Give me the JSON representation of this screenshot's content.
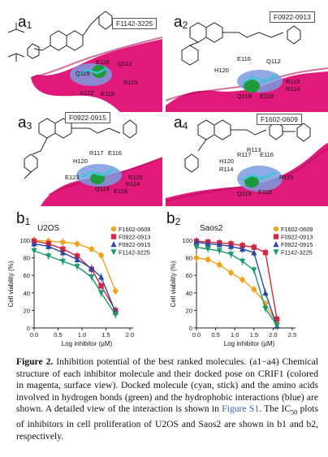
{
  "panels": {
    "a1": {
      "label_letter": "a",
      "label_num": "1",
      "compound": "F1142-3225",
      "residues": [
        "E116",
        "Q112",
        "Q119",
        "R115",
        "A122",
        "E118"
      ]
    },
    "a2": {
      "label_letter": "a",
      "label_num": "2",
      "compound": "F0922-0913",
      "residues": [
        "E116",
        "Q112",
        "H120",
        "R115",
        "R114",
        "Q119",
        "E118"
      ]
    },
    "a3": {
      "label_letter": "a",
      "label_num": "3",
      "compound": "F0922-0915",
      "residues": [
        "R117",
        "E116",
        "H120",
        "E123",
        "R115",
        "R114",
        "Q119",
        "E118"
      ]
    },
    "a4": {
      "label_letter": "a",
      "label_num": "4",
      "compound": "F1602-0609",
      "residues": [
        "R117",
        "E116",
        "H120",
        "R113",
        "R114",
        "R115",
        "Q119",
        "E118"
      ]
    }
  },
  "chart_data": [
    {
      "type": "scatter",
      "label_letter": "b",
      "label_num": "1",
      "title": "U2OS",
      "xlabel": "Log inhibitor (µM)",
      "ylabel": "Cell viability (%)",
      "xlim": [
        0.0,
        2.0
      ],
      "ylim": [
        0,
        100
      ],
      "xticks": [
        "0.0",
        "0.5",
        "1.0",
        "1.5",
        "2.0"
      ],
      "yticks": [
        "0",
        "20",
        "40",
        "60",
        "80",
        "100"
      ],
      "series": [
        {
          "name": "F1602-0609",
          "color": "#f2a31c",
          "marker": "circle",
          "x": [
            0.0,
            0.3,
            0.6,
            0.9,
            1.2,
            1.4,
            1.7
          ],
          "y": [
            100,
            99,
            98,
            96,
            90,
            83,
            42
          ]
        },
        {
          "name": "F0922-0913",
          "color": "#d7263d",
          "marker": "square",
          "x": [
            0.0,
            0.3,
            0.6,
            0.9,
            1.2,
            1.4,
            1.7
          ],
          "y": [
            99,
            96,
            90,
            82,
            67,
            48,
            20
          ]
        },
        {
          "name": "F0922-0915",
          "color": "#2a47a8",
          "marker": "triangle-up",
          "x": [
            0.0,
            0.3,
            0.6,
            0.9,
            1.2,
            1.4,
            1.7
          ],
          "y": [
            96,
            93,
            86,
            78,
            68,
            58,
            18
          ]
        },
        {
          "name": "F1142-3225",
          "color": "#1a9a6e",
          "marker": "triangle-down",
          "x": [
            0.0,
            0.3,
            0.6,
            0.9,
            1.2,
            1.4,
            1.7
          ],
          "y": [
            88,
            82,
            76,
            70,
            58,
            40,
            15
          ]
        }
      ]
    },
    {
      "type": "scatter",
      "label_letter": "b",
      "label_num": "2",
      "title": "Saos2",
      "xlabel": "Log inhibitor (µM)",
      "ylabel": "Cell viability (%)",
      "xlim": [
        0.0,
        2.5
      ],
      "ylim": [
        0,
        100
      ],
      "xticks": [
        "0.0",
        "0.5",
        "1.0",
        "1.5",
        "2.0",
        "2.5"
      ],
      "yticks": [
        "0",
        "20",
        "40",
        "60",
        "80",
        "100"
      ],
      "series": [
        {
          "name": "F1602-0609",
          "color": "#f2a31c",
          "marker": "circle",
          "x": [
            0.0,
            0.3,
            0.6,
            0.9,
            1.2,
            1.5,
            1.8,
            2.1
          ],
          "y": [
            80,
            78,
            72,
            63,
            55,
            44,
            28,
            5
          ]
        },
        {
          "name": "F0922-0913",
          "color": "#d7263d",
          "marker": "square",
          "x": [
            0.0,
            0.3,
            0.6,
            0.9,
            1.2,
            1.5,
            1.8,
            2.1
          ],
          "y": [
            99,
            98,
            97,
            96,
            94,
            92,
            86,
            10
          ]
        },
        {
          "name": "F0922-0915",
          "color": "#2a47a8",
          "marker": "triangle-up",
          "x": [
            0.0,
            0.3,
            0.6,
            0.9,
            1.2,
            1.5,
            1.8,
            2.1
          ],
          "y": [
            98,
            96,
            95,
            93,
            90,
            86,
            40,
            2
          ]
        },
        {
          "name": "F1142-3225",
          "color": "#1a9a6e",
          "marker": "triangle-down",
          "x": [
            0.0,
            0.3,
            0.6,
            0.9,
            1.2,
            1.5,
            1.8,
            2.1
          ],
          "y": [
            92,
            90,
            88,
            84,
            76,
            66,
            22,
            3
          ]
        }
      ]
    }
  ],
  "caption": {
    "figure_label": "Figure 2.",
    "text_1": " Inhibition potential of the best ranked molecules. (a1−a4) Chemical structure of each inhibitor molecule and their docked pose on CRIF1 (colored in magenta, surface view). Docked molecule (cyan, stick) and the amino acids involved in hydrogen bonds (green) and the hydrophobic interactions (blue) are shown. A detailed view of the interaction is shown in ",
    "link": "Figure S1",
    "text_2": ". The IC",
    "ic_sub": "50",
    "text_3": " plots of inhibitors in cell proliferation of U2OS and Saos2 are shown in b1 and b2, respectively."
  },
  "colors": {
    "protein": "#e0197a",
    "hbond": "#1f9a3a",
    "hydrophobic": "#6f8fd8",
    "ligand": "#3cc7d6"
  }
}
